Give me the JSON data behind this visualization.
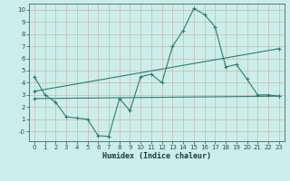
{
  "title": "",
  "xlabel": "Humidex (Indice chaleur)",
  "ylabel": "",
  "bg_color": "#cceee8",
  "line_color": "#2d7b6e",
  "grid_major_color": "#b8d0cc",
  "grid_minor_color": "#d8ecea",
  "xlim": [
    -0.5,
    23.5
  ],
  "ylim": [
    -0.8,
    10.5
  ],
  "xticks": [
    0,
    1,
    2,
    3,
    4,
    5,
    6,
    7,
    8,
    9,
    10,
    11,
    12,
    13,
    14,
    15,
    16,
    17,
    18,
    19,
    20,
    21,
    22,
    23
  ],
  "yticks": [
    0,
    1,
    2,
    3,
    4,
    5,
    6,
    7,
    8,
    9,
    10
  ],
  "ytick_labels": [
    "-0",
    "1",
    "2",
    "3",
    "4",
    "5",
    "6",
    "7",
    "8",
    "9",
    "10"
  ],
  "line1_x": [
    0,
    1,
    2,
    3,
    4,
    5,
    6,
    7,
    8,
    9,
    10,
    11,
    12,
    13,
    14,
    15,
    16,
    17,
    18,
    19,
    20,
    21,
    22,
    23
  ],
  "line1_y": [
    4.5,
    3.0,
    2.4,
    1.2,
    1.1,
    1.0,
    -0.35,
    -0.4,
    2.7,
    1.7,
    4.5,
    4.7,
    4.0,
    7.0,
    8.3,
    10.1,
    9.6,
    8.6,
    5.3,
    5.5,
    4.3,
    3.0,
    3.0,
    2.9
  ],
  "line2_x": [
    0,
    23
  ],
  "line2_y": [
    3.3,
    6.8
  ],
  "line3_x": [
    0,
    23
  ],
  "line3_y": [
    2.7,
    2.9
  ]
}
